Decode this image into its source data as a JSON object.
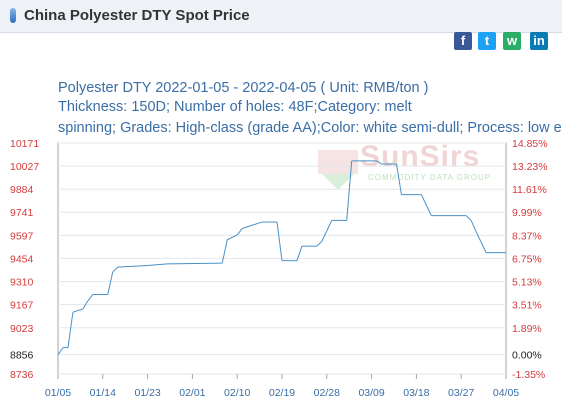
{
  "header": {
    "title": "China Polyester DTY Spot Price"
  },
  "share": {
    "facebook": "f",
    "twitter": "t",
    "wechat": "w",
    "linkedin": "in"
  },
  "watermark": {
    "brand": "SunSirs",
    "tagline": "COMMODITY DATA GROUP"
  },
  "chart_data": {
    "type": "line",
    "title": "Polyester DTY 2022-01-05 - 2022-04-05    ( Unit: RMB/ton )",
    "subtitle_lines": [
      "Thickness: 150D; Number of holes: 48F;Category: melt",
      "spinning; Grades: High-class (grade AA);Color: white semi-dull; Process: low elast"
    ],
    "x_ticks": [
      "01/05",
      "01/14",
      "01/23",
      "02/01",
      "02/10",
      "02/19",
      "02/28",
      "03/09",
      "03/18",
      "03/27",
      "04/05"
    ],
    "y_ticks_left": [
      "10171",
      "10027",
      "9884",
      "9741",
      "9597",
      "9454",
      "9310",
      "9167",
      "9023",
      "8856",
      "8736"
    ],
    "y_ticks_right": [
      "14.85%",
      "13.23%",
      "11.61%",
      "9.99%",
      "8.37%",
      "6.75%",
      "5.13%",
      "3.51%",
      "1.89%",
      "0.00%",
      "-1.35%"
    ],
    "ylim": [
      8736,
      10171
    ],
    "y2lim": [
      -1.35,
      14.85
    ],
    "line_color": "#4a90c8",
    "series": [
      {
        "values": [
          {
            "x": "2022-01-05",
            "y": 8856
          },
          {
            "x": "2022-01-06",
            "y": 8900
          },
          {
            "x": "2022-01-07",
            "y": 8900
          },
          {
            "x": "2022-01-08",
            "y": 9120
          },
          {
            "x": "2022-01-10",
            "y": 9140
          },
          {
            "x": "2022-01-11",
            "y": 9190
          },
          {
            "x": "2022-01-12",
            "y": 9230
          },
          {
            "x": "2022-01-15",
            "y": 9230
          },
          {
            "x": "2022-01-16",
            "y": 9370
          },
          {
            "x": "2022-01-17",
            "y": 9400
          },
          {
            "x": "2022-01-23",
            "y": 9410
          },
          {
            "x": "2022-01-27",
            "y": 9420
          },
          {
            "x": "2022-02-07",
            "y": 9425
          },
          {
            "x": "2022-02-08",
            "y": 9570
          },
          {
            "x": "2022-02-10",
            "y": 9600
          },
          {
            "x": "2022-02-11",
            "y": 9640
          },
          {
            "x": "2022-02-13",
            "y": 9660
          },
          {
            "x": "2022-02-15",
            "y": 9680
          },
          {
            "x": "2022-02-18",
            "y": 9680
          },
          {
            "x": "2022-02-19",
            "y": 9440
          },
          {
            "x": "2022-02-22",
            "y": 9440
          },
          {
            "x": "2022-02-23",
            "y": 9530
          },
          {
            "x": "2022-02-26",
            "y": 9530
          },
          {
            "x": "2022-02-27",
            "y": 9560
          },
          {
            "x": "2022-03-01",
            "y": 9690
          },
          {
            "x": "2022-03-04",
            "y": 9690
          },
          {
            "x": "2022-03-05",
            "y": 10060
          },
          {
            "x": "2022-03-10",
            "y": 10060
          },
          {
            "x": "2022-03-11",
            "y": 10040
          },
          {
            "x": "2022-03-14",
            "y": 10040
          },
          {
            "x": "2022-03-15",
            "y": 9850
          },
          {
            "x": "2022-03-19",
            "y": 9850
          },
          {
            "x": "2022-03-21",
            "y": 9720
          },
          {
            "x": "2022-03-28",
            "y": 9720
          },
          {
            "x": "2022-03-29",
            "y": 9690
          },
          {
            "x": "2022-03-30",
            "y": 9620
          },
          {
            "x": "2022-04-01",
            "y": 9490
          },
          {
            "x": "2022-04-05",
            "y": 9490
          }
        ]
      }
    ]
  }
}
